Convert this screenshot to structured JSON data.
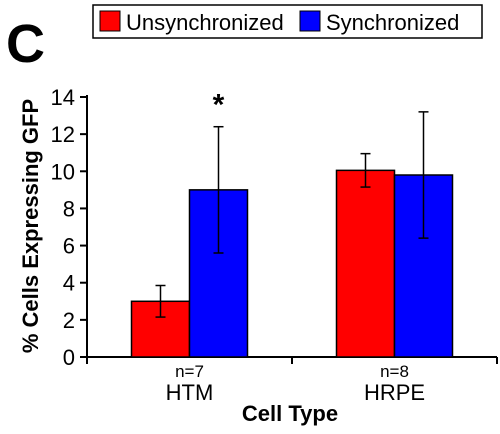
{
  "panel_label": "C",
  "chart_data": {
    "type": "bar",
    "title": "",
    "xlabel": "Cell Type",
    "ylabel": "% Cells Expressing GFP",
    "ylim": [
      0,
      14
    ],
    "yticks": [
      0,
      2,
      4,
      6,
      8,
      10,
      12,
      14
    ],
    "categories": [
      "HTM",
      "HRPE"
    ],
    "category_notes": [
      "n=7",
      "n=8"
    ],
    "legend_position": "top",
    "grid": false,
    "series": [
      {
        "name": "Unsynchronized",
        "color": "#ff0000",
        "values": [
          3.0,
          10.05
        ],
        "errors": [
          0.85,
          0.9
        ]
      },
      {
        "name": "Synchronized",
        "color": "#0000ff",
        "values": [
          9.0,
          9.8
        ],
        "errors": [
          3.4,
          3.4
        ]
      }
    ],
    "annotations": [
      {
        "text": "*",
        "category": "HTM",
        "series": "Synchronized"
      }
    ]
  }
}
